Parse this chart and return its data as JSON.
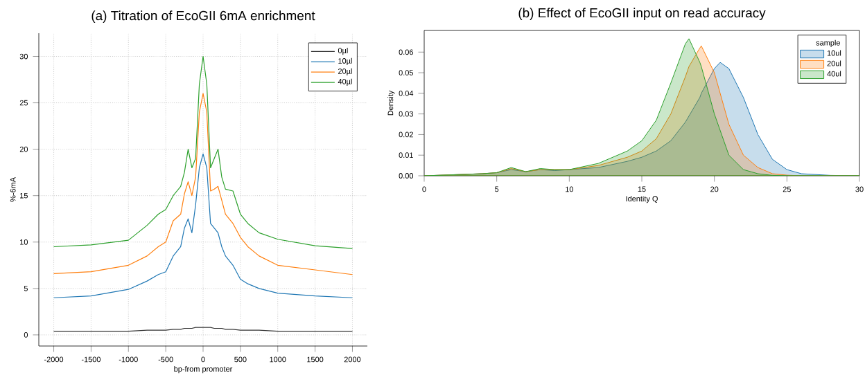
{
  "chart_data": [
    {
      "type": "line",
      "title": "(a) Titration of EcoGII 6mA enrichment",
      "xlabel": "bp-from promoter",
      "ylabel": "%-6mA",
      "x": [
        -2000,
        -1500,
        -1000,
        -750,
        -600,
        -500,
        -400,
        -300,
        -250,
        -200,
        -150,
        -100,
        -50,
        0,
        50,
        100,
        150,
        200,
        250,
        300,
        400,
        500,
        600,
        750,
        1000,
        1500,
        2000
      ],
      "series": [
        {
          "name": "0µl",
          "color": "#333333",
          "values": [
            0.4,
            0.4,
            0.4,
            0.5,
            0.5,
            0.5,
            0.6,
            0.6,
            0.7,
            0.7,
            0.7,
            0.8,
            0.8,
            0.8,
            0.8,
            0.8,
            0.7,
            0.7,
            0.7,
            0.6,
            0.6,
            0.5,
            0.5,
            0.5,
            0.4,
            0.4,
            0.4
          ]
        },
        {
          "name": "10µl",
          "color": "#1f77b4",
          "values": [
            4,
            4.2,
            4.9,
            5.8,
            6.5,
            6.8,
            8.5,
            9.5,
            11.5,
            12.5,
            11,
            14,
            18,
            19.5,
            18,
            12,
            11.5,
            11,
            9.5,
            8.5,
            7.5,
            6,
            5.5,
            5,
            4.5,
            4.2,
            4
          ]
        },
        {
          "name": "20µl",
          "color": "#ff7f0e",
          "values": [
            6.6,
            6.8,
            7.5,
            8.5,
            9.5,
            10,
            12.3,
            13,
            15.2,
            16.5,
            15,
            17,
            24,
            26,
            24,
            15.5,
            15.7,
            16,
            14.5,
            13,
            12,
            10.5,
            9.5,
            8.5,
            7.5,
            7,
            6.5
          ]
        },
        {
          "name": "40µl",
          "color": "#2ca02c",
          "values": [
            9.5,
            9.7,
            10.2,
            11.8,
            13,
            13.5,
            15,
            16,
            17.5,
            20,
            18,
            19,
            27,
            30,
            27,
            18,
            19,
            20,
            17,
            15.7,
            15.5,
            13,
            12,
            11,
            10.3,
            9.6,
            9.3
          ]
        }
      ],
      "xlim": [
        -2200,
        2200
      ],
      "ylim": [
        -1.2,
        32.5
      ],
      "xticks": [
        -2000,
        -1500,
        -1000,
        -500,
        0,
        500,
        1000,
        1500,
        2000
      ],
      "yticks": [
        0,
        5,
        10,
        15,
        20,
        25,
        30
      ],
      "grid": true,
      "legend": "top right"
    },
    {
      "type": "area",
      "title": "(b) Effect of EcoGII input on read accuracy",
      "xlabel": "Identity Q",
      "ylabel": "Density",
      "legend_title": "sample",
      "x": [
        0,
        2,
        4,
        5,
        6,
        7,
        8,
        9,
        10,
        12,
        14,
        15,
        16,
        17,
        18,
        18.25,
        19,
        19.1,
        20,
        20.4,
        21,
        22,
        23,
        24,
        25,
        26,
        28,
        30
      ],
      "series": [
        {
          "name": "10ul",
          "color": "#1f77b4",
          "values": [
            0,
            0.0005,
            0.001,
            0.0015,
            0.003,
            0.002,
            0.003,
            0.0025,
            0.003,
            0.004,
            0.007,
            0.009,
            0.012,
            0.017,
            0.026,
            0.029,
            0.038,
            0.04,
            0.052,
            0.055,
            0.052,
            0.038,
            0.02,
            0.008,
            0.003,
            0.001,
            0.0002,
            0
          ]
        },
        {
          "name": "20ul",
          "color": "#ff7f0e",
          "values": [
            0,
            0.0005,
            0.001,
            0.0015,
            0.0035,
            0.002,
            0.003,
            0.003,
            0.003,
            0.005,
            0.009,
            0.012,
            0.018,
            0.03,
            0.048,
            0.053,
            0.062,
            0.063,
            0.05,
            0.04,
            0.025,
            0.01,
            0.004,
            0.001,
            0.0003,
            0,
            0,
            0
          ]
        },
        {
          "name": "40ul",
          "color": "#2ca02c",
          "values": [
            0,
            0.0005,
            0.001,
            0.0015,
            0.004,
            0.002,
            0.0035,
            0.003,
            0.003,
            0.006,
            0.012,
            0.017,
            0.027,
            0.045,
            0.064,
            0.0665,
            0.055,
            0.053,
            0.03,
            0.022,
            0.01,
            0.003,
            0.001,
            0.0002,
            0,
            0,
            0,
            0
          ]
        }
      ],
      "xlim": [
        0,
        30
      ],
      "ylim": [
        0,
        0.0705
      ],
      "xticks": [
        0,
        5,
        10,
        15,
        20,
        25,
        30
      ],
      "yticks": [
        {
          "value": 0,
          "label": "0.00"
        },
        {
          "value": 0.01,
          "label": "0.01"
        },
        {
          "value": 0.02,
          "label": "0.02"
        },
        {
          "value": 0.03,
          "label": "0.03"
        },
        {
          "value": 0.04,
          "label": "0.04"
        },
        {
          "value": 0.05,
          "label": "0.05"
        },
        {
          "value": 0.06,
          "label": "0.06"
        }
      ],
      "grid": false,
      "legend": "top right"
    }
  ]
}
